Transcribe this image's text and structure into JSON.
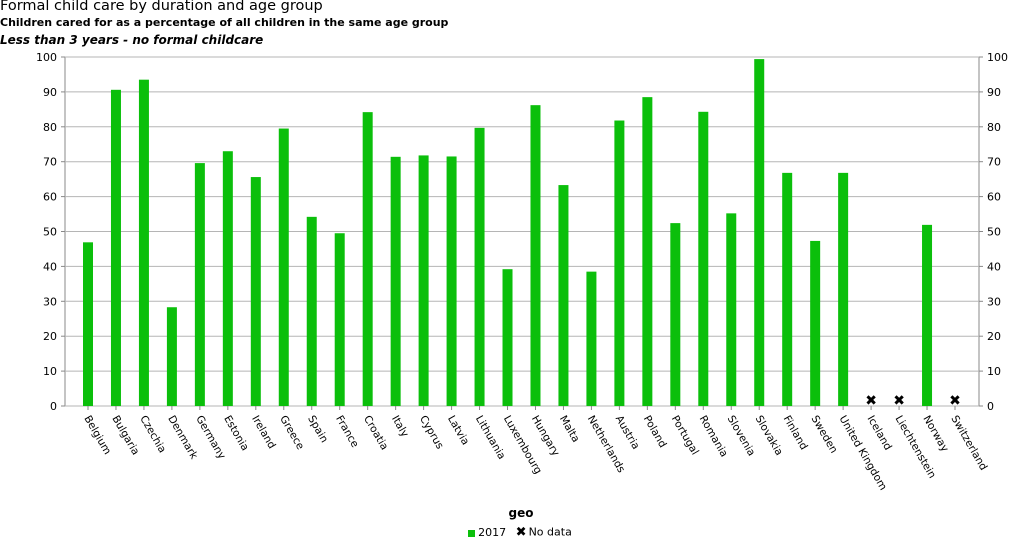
{
  "header": {
    "title": "Formal child care by duration and age group",
    "subtitle": "Children cared for as a percentage of all children in the same age group",
    "filter": "Less than 3 years - no formal childcare"
  },
  "colors": {
    "bar": "#0bbf0b",
    "grid": "#b5b5b5",
    "axis": "#888888"
  },
  "legend": {
    "series_label": "2017",
    "nodata_label": "No data",
    "nodata_icon": "x-mark-icon"
  },
  "chart_data": {
    "type": "bar",
    "xlabel": "geo",
    "ylabel": "",
    "ylim": [
      0,
      100
    ],
    "yticks": [
      0,
      10,
      20,
      30,
      40,
      50,
      60,
      70,
      80,
      90,
      100
    ],
    "grid": true,
    "legend_position": "bottom",
    "categories": [
      "Belgium",
      "Bulgaria",
      "Czechia",
      "Denmark",
      "Germany",
      "Estonia",
      "Ireland",
      "Greece",
      "Spain",
      "France",
      "Croatia",
      "Italy",
      "Cyprus",
      "Latvia",
      "Lithuania",
      "Luxembourg",
      "Hungary",
      "Malta",
      "Netherlands",
      "Austria",
      "Poland",
      "Portugal",
      "Romania",
      "Slovenia",
      "Slovakia",
      "Finland",
      "Sweden",
      "United Kingdom",
      "Iceland",
      "Liechtenstein",
      "Norway",
      "Switzerland"
    ],
    "series": [
      {
        "name": "2017",
        "values": [
          46.9,
          90.6,
          93.5,
          28.3,
          69.6,
          73.0,
          65.6,
          79.5,
          54.2,
          49.5,
          84.2,
          71.4,
          71.8,
          71.5,
          79.7,
          39.2,
          86.2,
          63.3,
          38.5,
          81.8,
          88.5,
          52.4,
          84.3,
          55.2,
          99.4,
          66.8,
          47.3,
          66.8,
          null,
          null,
          51.9,
          null
        ]
      }
    ]
  }
}
